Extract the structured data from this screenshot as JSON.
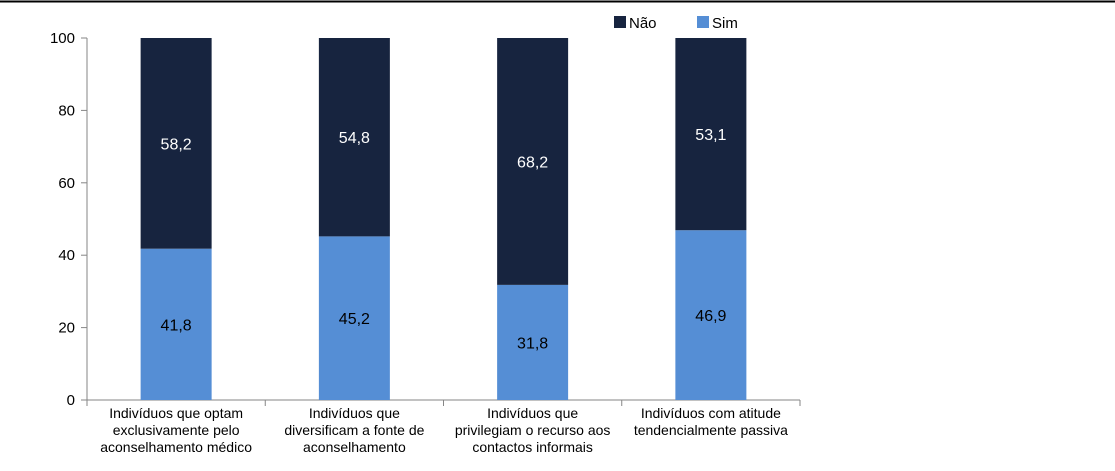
{
  "chart_data": {
    "type": "bar",
    "stacked": true,
    "title": "",
    "xlabel": "",
    "ylabel": "",
    "ylim": [
      0,
      100
    ],
    "yticks": [
      0,
      20,
      40,
      60,
      80,
      100
    ],
    "grid": false,
    "legend_position": "top-right",
    "categories": [
      [
        "Indivíduos que optam",
        "exclusivamente pelo",
        "aconselhamento médico"
      ],
      [
        "Indivíduos que",
        "diversificam a fonte de",
        "aconselhamento"
      ],
      [
        "Indivíduos que",
        "privilegiam o recurso aos",
        "contactos informais"
      ],
      [
        "Indivíduos com atitude",
        "tendencialmente passiva"
      ]
    ],
    "series": [
      {
        "name": "Sim",
        "color": "#558ED5",
        "label_color": "#000000",
        "values": [
          41.8,
          45.2,
          31.8,
          46.9
        ],
        "labels": [
          "41,8",
          "45,2",
          "31,8",
          "46,9"
        ]
      },
      {
        "name": "Não",
        "color": "#17243F",
        "label_color": "#FFFFFF",
        "values": [
          58.2,
          54.8,
          68.2,
          53.1
        ],
        "labels": [
          "58,2",
          "54,8",
          "68,2",
          "53,1"
        ]
      }
    ],
    "legend_order": [
      "Não",
      "Sim"
    ]
  }
}
